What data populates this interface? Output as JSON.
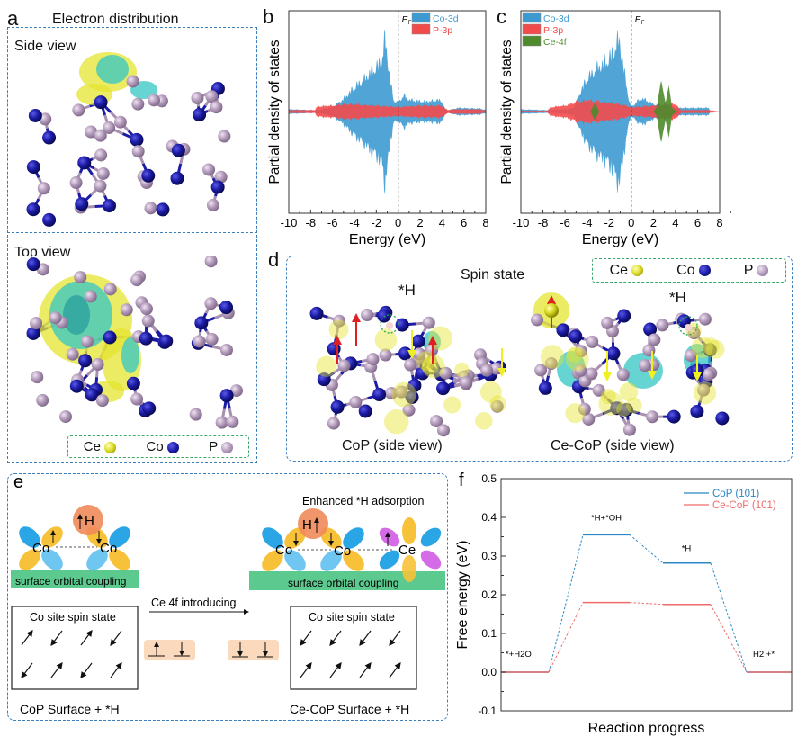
{
  "panel_a": {
    "label": "a",
    "title": "Electron distribution",
    "side_view": "Side view",
    "top_view": "Top view",
    "legend": [
      {
        "name": "Ce",
        "color": "#d8d820"
      },
      {
        "name": "Co",
        "color": "#14148c"
      },
      {
        "name": "P",
        "color": "#a08aa8"
      }
    ]
  },
  "panel_d": {
    "label": "d",
    "title": "Spin state",
    "h_label_left": "*H",
    "h_label_right": "*H",
    "caption_left": "CoP (side view)",
    "caption_right": "Ce-CoP (side view)",
    "legend": [
      {
        "name": "Ce",
        "color": "#d8d820"
      },
      {
        "name": "Co",
        "color": "#14148c"
      },
      {
        "name": "P",
        "color": "#a08aa8"
      }
    ]
  },
  "panel_e": {
    "label": "e",
    "enhanced": "Enhanced *H adsorption",
    "h_atom_left": "H",
    "h_atom_right": "H",
    "co1": "Co",
    "co2": "Co",
    "co3": "Co",
    "co4": "Co",
    "ce": "Ce",
    "coupling_left": "surface orbital coupling",
    "coupling_right": "surface orbital coupling",
    "arrow_text": "Ce 4f introducing",
    "spin_box_left": "Co site spin state",
    "spin_box_right": "Co site spin state",
    "caption_left": "CoP Surface + *H",
    "caption_right": "Ce-CoP Surface + *H"
  },
  "colors": {
    "co3d": "#3d9ad1",
    "p3p": "#f24b4b",
    "ce4f": "#4f8a2c",
    "cop": "#2b87c4",
    "cecop": "#ef6a6a"
  },
  "chart_data": [
    {
      "id": "b",
      "label": "b",
      "type": "area",
      "xlabel": "Energy (eV)",
      "ylabel": "Partial density of states",
      "xlim": [
        -10,
        8
      ],
      "xticks": [
        "-10",
        "-8",
        "-6",
        "-4",
        "-2",
        "0",
        "2",
        "4",
        "6",
        "8"
      ],
      "fermi_label": "E",
      "fermi_sub": "F",
      "mirrored": true,
      "series": [
        {
          "name": "Co-3d",
          "color": "#3d9ad1",
          "x": [
            -10,
            -9.8,
            -8,
            -7.5,
            -7,
            -6,
            -5,
            -4.5,
            -4,
            -3,
            -2.5,
            -2,
            -1.5,
            -1.2,
            -1,
            -0.7,
            -0.4,
            0,
            0.5,
            1,
            2,
            3,
            3.5,
            4,
            4.3,
            4.6,
            5.5,
            7.5,
            8
          ],
          "y": [
            0.03,
            0.03,
            0.02,
            0.02,
            0.03,
            0.06,
            0.17,
            0.25,
            0.33,
            0.45,
            0.55,
            0.6,
            0.7,
            1.0,
            0.75,
            0.4,
            0.15,
            0.12,
            0.22,
            0.16,
            0.14,
            0.14,
            0.16,
            0.14,
            0.03,
            0.02,
            0.05,
            0.04,
            0.02
          ]
        },
        {
          "name": "P-3p",
          "color": "#f24b4b",
          "x": [
            -10,
            -7.6,
            -7.4,
            -6,
            -5,
            -4,
            -2,
            -1,
            0,
            1,
            2,
            3,
            4,
            4.5,
            5,
            7.5,
            8
          ],
          "y": [
            0.02,
            0.02,
            0.07,
            0.08,
            0.1,
            0.1,
            0.08,
            0.07,
            0.06,
            0.07,
            0.08,
            0.08,
            0.08,
            0.02,
            0.03,
            0.03,
            0.01
          ]
        }
      ]
    },
    {
      "id": "c",
      "label": "c",
      "type": "area",
      "xlabel": "Energy (eV)",
      "ylabel": "Partial density of states",
      "xlim": [
        -10,
        8
      ],
      "xticks": [
        "-10",
        "-8",
        "-6",
        "-4",
        "-2",
        "0",
        "2",
        "4",
        "6",
        "8"
      ],
      "fermi_label": "E",
      "fermi_sub": "F",
      "mirrored": true,
      "series": [
        {
          "name": "Co-3d",
          "color": "#3d9ad1",
          "x": [
            -10,
            -8,
            -7,
            -6,
            -5.2,
            -5,
            -4.5,
            -4,
            -3,
            -2,
            -1.5,
            -1.1,
            -0.7,
            -0.2,
            0,
            0.5,
            1,
            2,
            3,
            4,
            5,
            6,
            7,
            7.2,
            8
          ],
          "y": [
            0.03,
            0.02,
            0.02,
            0.03,
            0.05,
            0.12,
            0.3,
            0.45,
            0.6,
            0.72,
            0.85,
            1.0,
            0.6,
            0.15,
            0.05,
            0.14,
            0.18,
            0.1,
            0.08,
            0.05,
            0.05,
            0.05,
            0.05,
            0.0,
            0.0
          ]
        },
        {
          "name": "P-3p",
          "color": "#f24b4b",
          "x": [
            -10,
            -7.6,
            -7.3,
            -6,
            -5,
            -4,
            -3,
            -2,
            -1,
            0,
            1,
            2,
            3,
            4,
            4.5,
            5,
            7,
            8
          ],
          "y": [
            0.01,
            0.01,
            0.06,
            0.08,
            0.13,
            0.15,
            0.14,
            0.12,
            0.1,
            0.06,
            0.07,
            0.08,
            0.1,
            0.1,
            0.02,
            0.02,
            0.02,
            0.0
          ]
        },
        {
          "name": "Ce-4f",
          "color": "#4f8a2c",
          "x": [
            -10,
            -3.7,
            -3.3,
            -2.9,
            2.0,
            2.3,
            2.7,
            3.1,
            3.4,
            3.7,
            4.2,
            8
          ],
          "y": [
            0.0,
            0.0,
            0.1,
            0.0,
            0.0,
            0.05,
            0.36,
            0.1,
            0.3,
            0.04,
            0.0,
            0.0
          ]
        }
      ]
    },
    {
      "id": "f",
      "label": "f",
      "type": "line",
      "xlabel": "Reaction progress",
      "ylabel": "Free energy (eV)",
      "ylim": [
        -0.1,
        0.5
      ],
      "yticks": [
        "0.5",
        "0.4",
        "0.3",
        "0.2",
        "0.1",
        "0.0",
        "-0.1"
      ],
      "states": [
        "*+H2O",
        "*H+*OH",
        "*H",
        "H2 +*"
      ],
      "series": [
        {
          "name": "CoP (101)",
          "color": "#2b87c4",
          "values": [
            0.0,
            0.355,
            0.282,
            0.0
          ]
        },
        {
          "name": "Ce-CoP (101)",
          "color": "#ef6a6a",
          "values": [
            0.0,
            0.18,
            0.175,
            0.0
          ]
        }
      ],
      "legend": "top-right"
    }
  ]
}
